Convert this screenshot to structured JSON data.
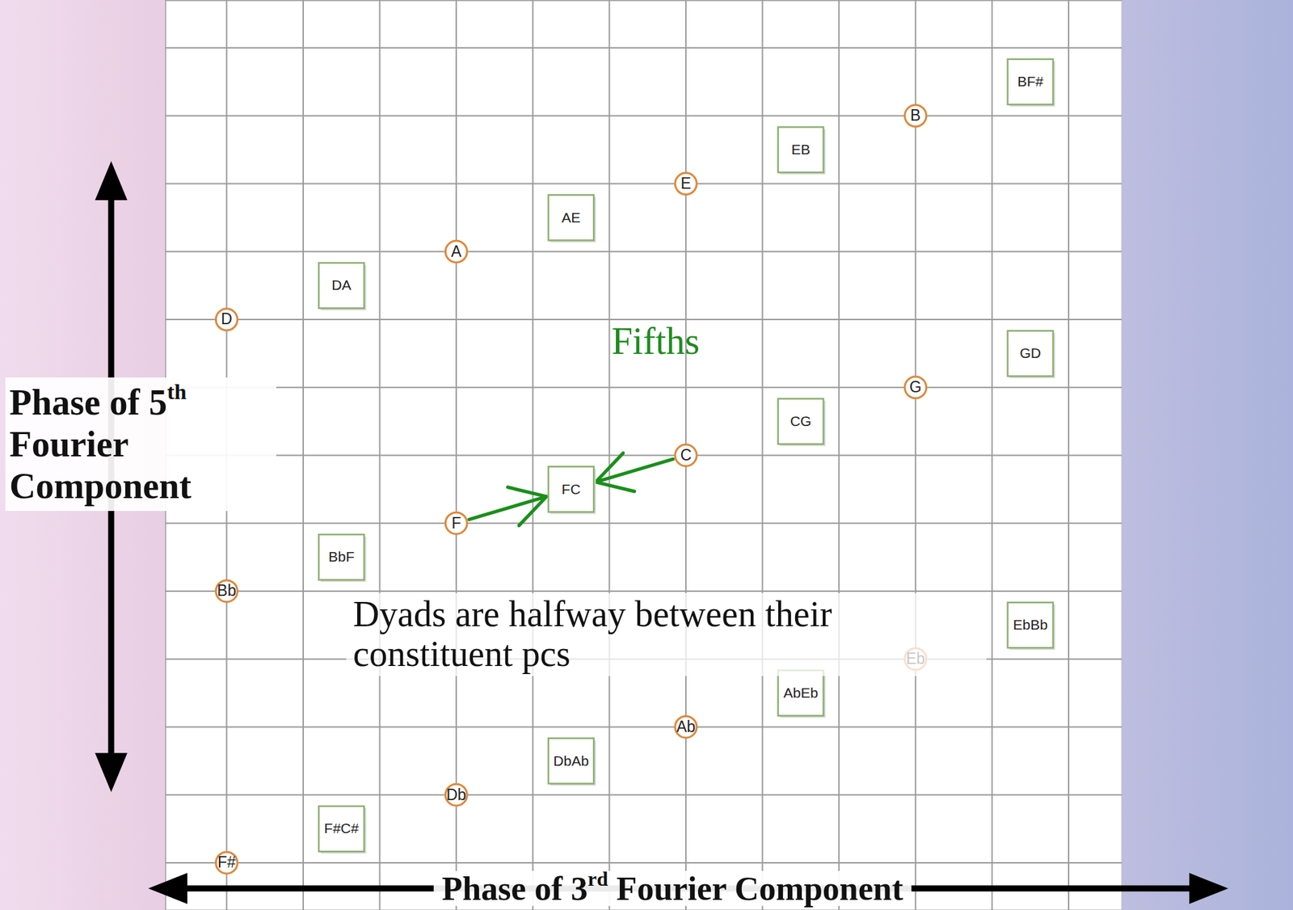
{
  "chart_data": {
    "type": "scatter",
    "xlabel": "Phase of 3rd Fourier Component",
    "ylabel": "Phase of 5th Fourier Component",
    "xlim": [
      -0.8,
      11.7
    ],
    "ylim": [
      -0.7,
      12.7
    ],
    "xticks": [
      0,
      1,
      2,
      3,
      4,
      5,
      6,
      7,
      8,
      9,
      10,
      11
    ],
    "yticks": [
      0,
      1,
      2,
      3,
      4,
      5,
      6,
      7,
      8,
      9,
      10,
      11,
      12
    ],
    "grid": true,
    "tick_labels": false,
    "series": [
      {
        "marker": "circle",
        "color": "#e0883a",
        "labels": [
          "F#",
          "Db",
          "Ab",
          "Eb",
          "Bb",
          "F",
          "C",
          "G",
          "D",
          "A",
          "E",
          "B"
        ],
        "x": [
          0,
          3,
          6,
          9,
          0,
          3,
          6,
          9,
          0,
          3,
          6,
          9
        ],
        "y": [
          0,
          1,
          2,
          3,
          4,
          5,
          6,
          7,
          8,
          9,
          10,
          11
        ]
      },
      {
        "marker": "square",
        "color": "#8db070",
        "labels": [
          "F#C#",
          "DbAb",
          "AbEb",
          "EbBb",
          "BbF",
          "FC",
          "CG",
          "GD",
          "DA",
          "AE",
          "EB",
          "BF#"
        ],
        "x": [
          1.5,
          4.5,
          7.5,
          10.5,
          1.5,
          4.5,
          7.5,
          10.5,
          1.5,
          4.5,
          7.5,
          10.5
        ],
        "y": [
          0.5,
          1.5,
          2.5,
          3.5,
          4.5,
          5.5,
          6.5,
          7.5,
          8.5,
          9.5,
          10.5,
          11.5
        ]
      }
    ],
    "annotations": [
      "Fifths",
      "Dyads are halfway between their constituent pcs"
    ],
    "arrows": [
      {
        "from": "F",
        "to": "FC"
      },
      {
        "from": "C",
        "to": "FC"
      }
    ]
  }
}
